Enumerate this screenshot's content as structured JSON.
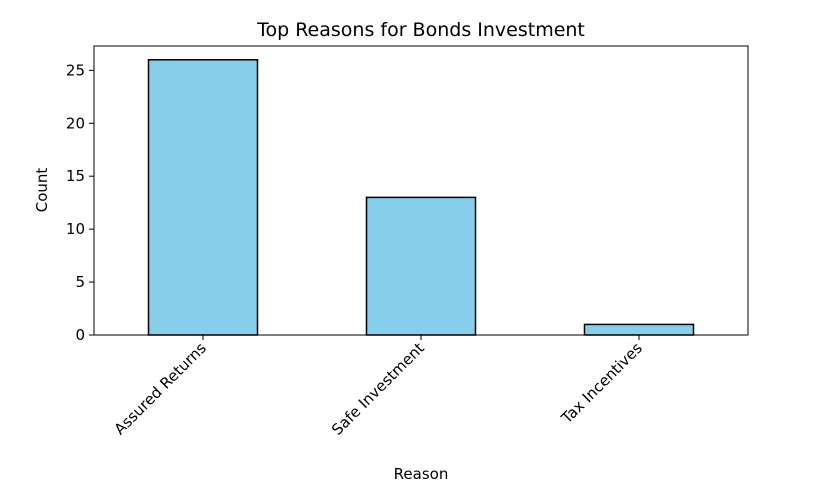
{
  "chart_data": {
    "type": "bar",
    "title": "Top Reasons for Bonds Investment",
    "xlabel": "Reason",
    "ylabel": "Count",
    "categories": [
      "Assured Returns",
      "Safe Investment",
      "Tax Incentives"
    ],
    "values": [
      26,
      13,
      1
    ],
    "ylim": [
      0,
      27.3
    ],
    "yticks": [
      0,
      5,
      10,
      15,
      20,
      25
    ],
    "grid": false,
    "legend": "none",
    "bar_color": "#87CEEB",
    "bar_edge_color": "#000000"
  }
}
